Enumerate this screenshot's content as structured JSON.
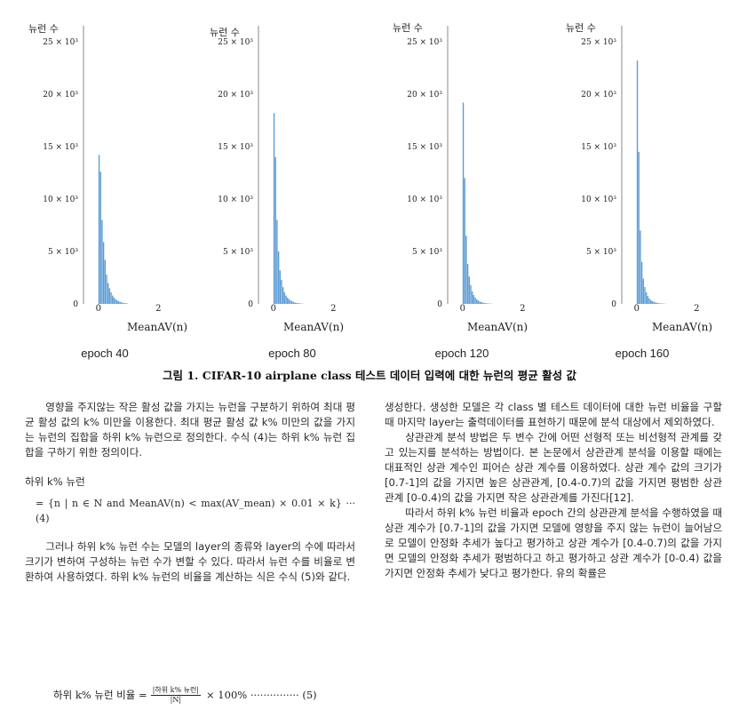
{
  "chart_data": [
    {
      "type": "bar",
      "ylabel": "뉴런 수",
      "xlabel": "MeanAV(n)",
      "xticks": [
        "0",
        "2"
      ],
      "yticks": [
        "0",
        "5 × 10³",
        "10 × 10³",
        "15 × 10³",
        "20 × 10³",
        "25 × 10³"
      ],
      "ylim": [
        0,
        25000
      ],
      "xlim": [
        -0.5,
        3.0
      ],
      "bin_width": 0.05,
      "x": [
        0.0,
        0.05,
        0.1,
        0.15,
        0.2,
        0.25,
        0.3,
        0.35,
        0.4,
        0.45,
        0.5,
        0.55,
        0.6,
        0.65,
        0.7,
        0.75,
        0.8,
        0.85,
        0.9,
        0.95
      ],
      "values": [
        14200,
        12600,
        8000,
        5900,
        4200,
        2800,
        2000,
        1500,
        1100,
        800,
        600,
        450,
        350,
        260,
        200,
        150,
        110,
        80,
        60,
        40
      ],
      "epoch_label": "epoch 40"
    },
    {
      "type": "bar",
      "ylabel": "뉴런 수",
      "xlabel": "MeanAV(n)",
      "xticks": [
        "0",
        "2"
      ],
      "yticks": [
        "0",
        "5 × 10³",
        "10 × 10³",
        "15 × 10³",
        "20 × 10³",
        "25 × 10³"
      ],
      "ylim": [
        0,
        25000
      ],
      "xlim": [
        -0.5,
        3.0
      ],
      "bin_width": 0.05,
      "x": [
        0.0,
        0.05,
        0.1,
        0.15,
        0.2,
        0.25,
        0.3,
        0.35,
        0.4,
        0.45,
        0.5,
        0.55,
        0.6,
        0.65,
        0.7,
        0.75,
        0.8,
        0.85,
        0.9,
        0.95
      ],
      "values": [
        18200,
        14000,
        8000,
        5000,
        3200,
        2300,
        1600,
        1100,
        800,
        600,
        450,
        330,
        250,
        180,
        130,
        100,
        75,
        55,
        40,
        30
      ],
      "epoch_label": "epoch 80"
    },
    {
      "type": "bar",
      "ylabel": "뉴런 수",
      "xlabel": "MeanAV(n)",
      "xticks": [
        "0",
        "2"
      ],
      "yticks": [
        "0",
        "5 × 10³",
        "10 × 10³",
        "15 × 10³",
        "20 × 10³",
        "25 × 10³"
      ],
      "ylim": [
        0,
        25000
      ],
      "xlim": [
        -0.5,
        3.0
      ],
      "bin_width": 0.05,
      "x": [
        0.0,
        0.05,
        0.1,
        0.15,
        0.2,
        0.25,
        0.3,
        0.35,
        0.4,
        0.45,
        0.5,
        0.55,
        0.6,
        0.65,
        0.7,
        0.75,
        0.8,
        0.85,
        0.9,
        0.95
      ],
      "values": [
        19200,
        12000,
        6500,
        3800,
        2600,
        1800,
        1200,
        850,
        600,
        430,
        320,
        240,
        180,
        130,
        95,
        70,
        50,
        38,
        28,
        20
      ],
      "epoch_label": "epoch 120"
    },
    {
      "type": "bar",
      "ylabel": "뉴런 수",
      "xlabel": "MeanAV(n)",
      "xticks": [
        "0",
        "2"
      ],
      "yticks": [
        "0",
        "5 × 10³",
        "10 × 10³",
        "15 × 10³",
        "20 × 10³",
        "25 × 10³"
      ],
      "ylim": [
        0,
        25000
      ],
      "xlim": [
        -0.5,
        3.0
      ],
      "bin_width": 0.05,
      "x": [
        0.0,
        0.05,
        0.1,
        0.15,
        0.2,
        0.25,
        0.3,
        0.35,
        0.4,
        0.45,
        0.5,
        0.55,
        0.6,
        0.65,
        0.7,
        0.75,
        0.8,
        0.85,
        0.9,
        0.95
      ],
      "values": [
        23200,
        14500,
        7000,
        4000,
        2400,
        1600,
        1100,
        750,
        520,
        370,
        270,
        200,
        145,
        105,
        78,
        57,
        42,
        31,
        22,
        16
      ],
      "epoch_label": "epoch 160"
    }
  ],
  "figure": {
    "caption": "그림 1. CIFAR-10 airplane class 테스트 데이터 입력에 대한 뉴런의 평균 활성 값"
  },
  "left_column": {
    "para1": "영향을 주지않는 작은 활성 값을 가지는 뉴런을 구분하기 위하여 최대 평균 활성 값의 k% 미만을 이용한다. 최대 평균 활성 값 k% 미만의 값을 가지는 뉴런의 집합을 하위 k% 뉴런으로 정의한다. 수식 (4)는 하위 k% 뉴런 집합을 구하기 위한 정의이다.",
    "eq4_label": "하위 k% 뉴런",
    "eq4": "= {n | n ∈ N and MeanAV(n) < max(AV_mean) × 0.01 × k} ··· (4)",
    "para2": "그러나 하위 k% 뉴런 수는 모델의 layer의 종류와 layer의 수에 따라서 크기가 변하여 구성하는 뉴런 수가 변할 수 있다. 따라서 뉴런 수를 비율로 변환하여 사용하였다. 하위 k% 뉴런의 비율을 계산하는 식은 수식 (5)와 같다.",
    "eq5_lhs": "하위 k% 뉴런 비율 =",
    "eq5_num": "|하위 k% 뉴런|",
    "eq5_den": "|N|",
    "eq5_tail": "× 100% ··············· (5)"
  },
  "right_column": {
    "para1": "생성한다. 생성한 모델은 각 class 별 테스트 데이터에 대한 뉴런 비율을 구할 때 마지막 layer는 출력데이터를 표현하기 때문에 분석 대상에서 제외하였다.",
    "para2": "상관관계 분석 방법은 두 변수 간에 어떤 선형적 또는 비선형적 관계를 갖고 있는지를 분석하는 방법이다. 본 논문에서 상관관계 분석을 이용할 때에는 대표적인 상관 계수인 피어슨 상관 계수를 이용하였다. 상관 계수 값의 크기가 [0.7-1]의 값을 가지면 높은 상관관계, [0.4-0.7)의 값을 가지면 평범한 상관관계 [0-0.4)의 값을 가지면 작은 상관관계를 가진다[12].",
    "para3": "따라서 하위 k% 뉴런 비율과 epoch 간의 상관관계 분석을 수행하였을 때 상관 계수가 [0.7-1]의 값을 가지면 모델에 영향을 주지 않는 뉴런이 늘어남으로 모델이 안정화 추세가 높다고 평가하고 상관 계수가 [0.4-0.7)의 값을 가지면 모델의 안정화 추세가 평범하다고 하고 평가하고 상관 계수가 [0-0.4) 값을 가지면 안정화 추세가 낮다고 평가한다. 유의 확률은"
  }
}
